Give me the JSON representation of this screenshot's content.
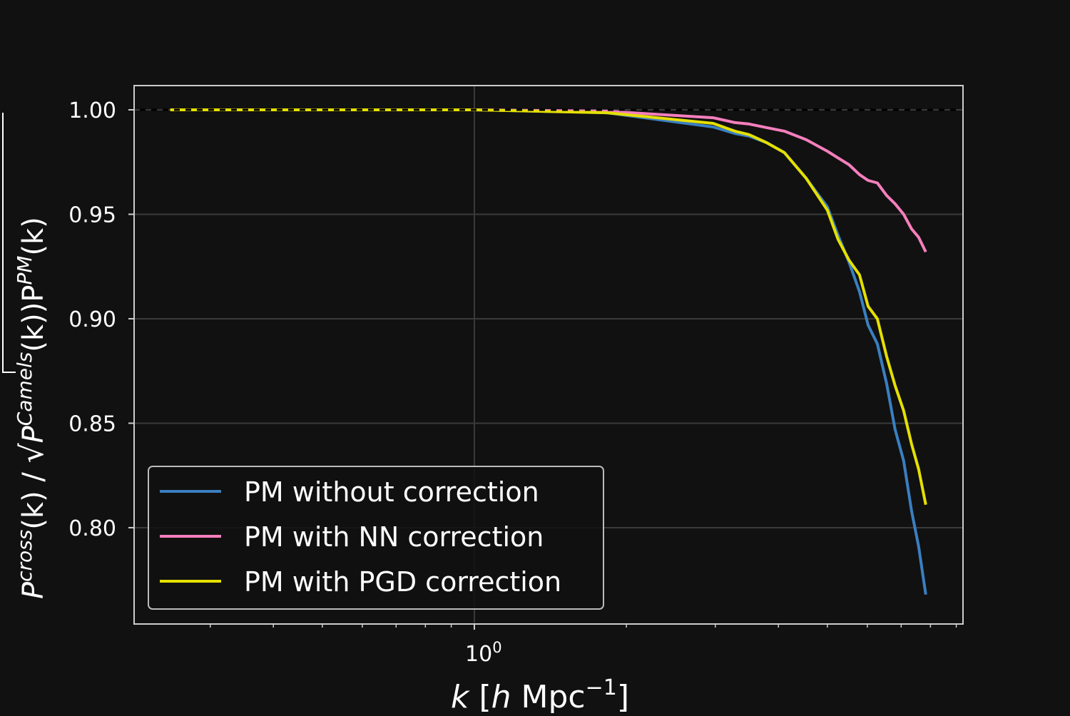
{
  "chart_data": {
    "type": "line",
    "title": "",
    "xlabel_parts": [
      "k",
      " [",
      "h",
      " Mpc",
      "−1",
      "]"
    ],
    "ylabel_parts": [
      "P",
      "cross",
      "(k) / ",
      "√",
      "P",
      "Camels",
      "(k))P",
      "PM",
      "(k)"
    ],
    "xscale": "log",
    "xlim": [
      0.212,
      9.28
    ],
    "ylim": [
      0.7539,
      1.0116
    ],
    "yticks": [
      1.0,
      0.95,
      0.9,
      0.85,
      0.8
    ],
    "ytick_labels": [
      "1.00",
      "0.95",
      "0.90",
      "0.85",
      "0.80"
    ],
    "xticks_major": [
      1
    ],
    "xtick_labels": [
      "10",
      "0"
    ],
    "xticks_minor": [
      0.3,
      0.4,
      0.5,
      0.6,
      0.7,
      0.8,
      0.9,
      2,
      3,
      4,
      5,
      6,
      7,
      8,
      9
    ],
    "grid": true,
    "reference_line": 1.0,
    "legend_position": "lower-left",
    "x": [
      0.25,
      0.5,
      1.0,
      1.83,
      2.97,
      3.28,
      3.5,
      3.79,
      4.11,
      4.54,
      5.0,
      5.25,
      5.52,
      5.79,
      6.02,
      6.28,
      6.55,
      6.81,
      7.08,
      7.34,
      7.58,
      7.83
    ],
    "series": [
      {
        "name": "PM without correction",
        "color": "#3a7fc1",
        "values": [
          1.0,
          1.0,
          1.0,
          0.9986,
          0.9918,
          0.9887,
          0.9874,
          0.9843,
          0.9795,
          0.9672,
          0.9536,
          0.94,
          0.927,
          0.913,
          0.897,
          0.888,
          0.869,
          0.847,
          0.832,
          0.808,
          0.791,
          0.768
        ]
      },
      {
        "name": "PM with NN correction",
        "color": "#f57fbd",
        "values": [
          1.0,
          1.0,
          1.0,
          0.9993,
          0.9962,
          0.9939,
          0.9932,
          0.9915,
          0.9898,
          0.9857,
          0.9802,
          0.977,
          0.9737,
          0.969,
          0.9662,
          0.965,
          0.959,
          0.955,
          0.95,
          0.943,
          0.939,
          0.932
        ]
      },
      {
        "name": "PM with PGD correction",
        "color": "#e5e000",
        "values": [
          1.0,
          1.0,
          1.0,
          0.9986,
          0.9935,
          0.9898,
          0.9881,
          0.9843,
          0.9795,
          0.9672,
          0.952,
          0.938,
          0.928,
          0.921,
          0.906,
          0.9,
          0.882,
          0.868,
          0.856,
          0.84,
          0.828,
          0.811
        ]
      }
    ]
  }
}
